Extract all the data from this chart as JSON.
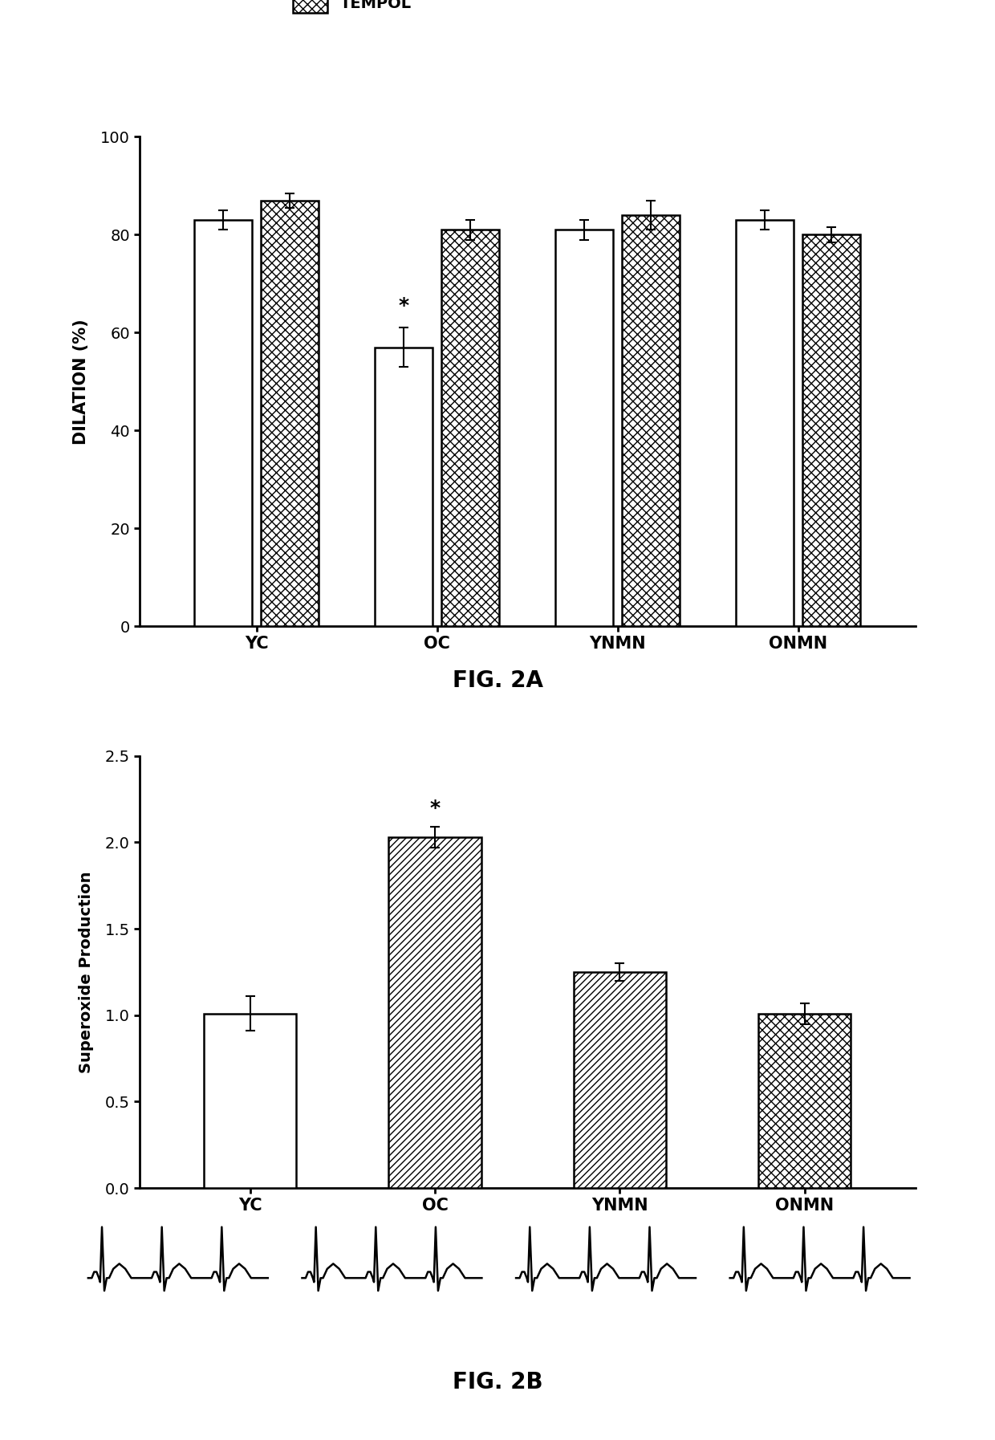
{
  "fig2a": {
    "categories": [
      "YC",
      "OC",
      "YNMN",
      "ONMN"
    ],
    "ach_values": [
      83,
      57,
      81,
      83
    ],
    "ach_errors": [
      2,
      4,
      2,
      2
    ],
    "tempol_values": [
      87,
      81,
      84,
      80
    ],
    "tempol_errors": [
      1.5,
      2,
      3,
      1.5
    ],
    "ylabel": "DILATION (%)",
    "ylim": [
      0,
      100
    ],
    "yticks": [
      0,
      20,
      40,
      60,
      80,
      100
    ],
    "title": "FIG. 2A"
  },
  "fig2b": {
    "categories": [
      "YC",
      "OC",
      "YNMN",
      "ONMN"
    ],
    "values": [
      1.01,
      2.03,
      1.25,
      1.01
    ],
    "errors": [
      0.1,
      0.06,
      0.05,
      0.06
    ],
    "hatch_patterns": [
      "",
      "////",
      "////",
      "xxx"
    ],
    "ylabel": "Superoxide Production",
    "ylim": [
      0.0,
      2.5
    ],
    "yticks": [
      0.0,
      0.5,
      1.0,
      1.5,
      2.0,
      2.5
    ],
    "title": "FIG. 2B"
  },
  "background_color": "#ffffff",
  "bar_edge_color": "#000000",
  "bar_linewidth": 1.8
}
